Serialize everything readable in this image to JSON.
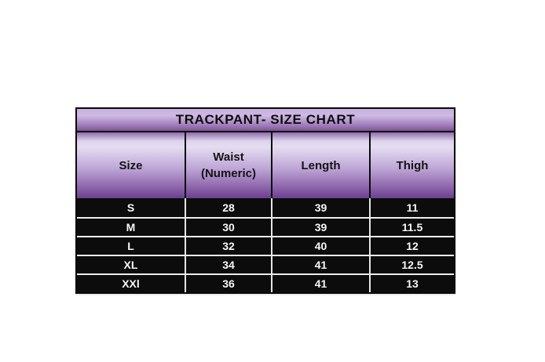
{
  "chart_data": {
    "type": "table",
    "title": "TRACKPANT- SIZE CHART",
    "columns": [
      "Size",
      "Waist (Numeric)",
      "Length",
      "Thigh"
    ],
    "header_lines": [
      [
        "Size"
      ],
      [
        "Waist",
        "(Numeric)"
      ],
      [
        "Length"
      ],
      [
        "Thigh"
      ]
    ],
    "rows": [
      [
        "S",
        "28",
        "39",
        "11"
      ],
      [
        "M",
        "30",
        "39",
        "11.5"
      ],
      [
        "L",
        "32",
        "40",
        "12"
      ],
      [
        "XL",
        "34",
        "41",
        "12.5"
      ],
      [
        "XXl",
        "36",
        "41",
        "13"
      ]
    ]
  },
  "colors": {
    "title_gradient_top": "#c6afdc",
    "title_gradient_bottom": "#7b5295",
    "header_gradient_top": "#8f6bab",
    "header_gradient_light": "#e5ddf1",
    "header_gradient_bottom": "#6a4090",
    "data_row_background": "#0c0c0c",
    "data_row_text": "#f7f7f7",
    "divider": "#ededed",
    "border": "#0a0a0a",
    "page_background": "#ffffff"
  }
}
